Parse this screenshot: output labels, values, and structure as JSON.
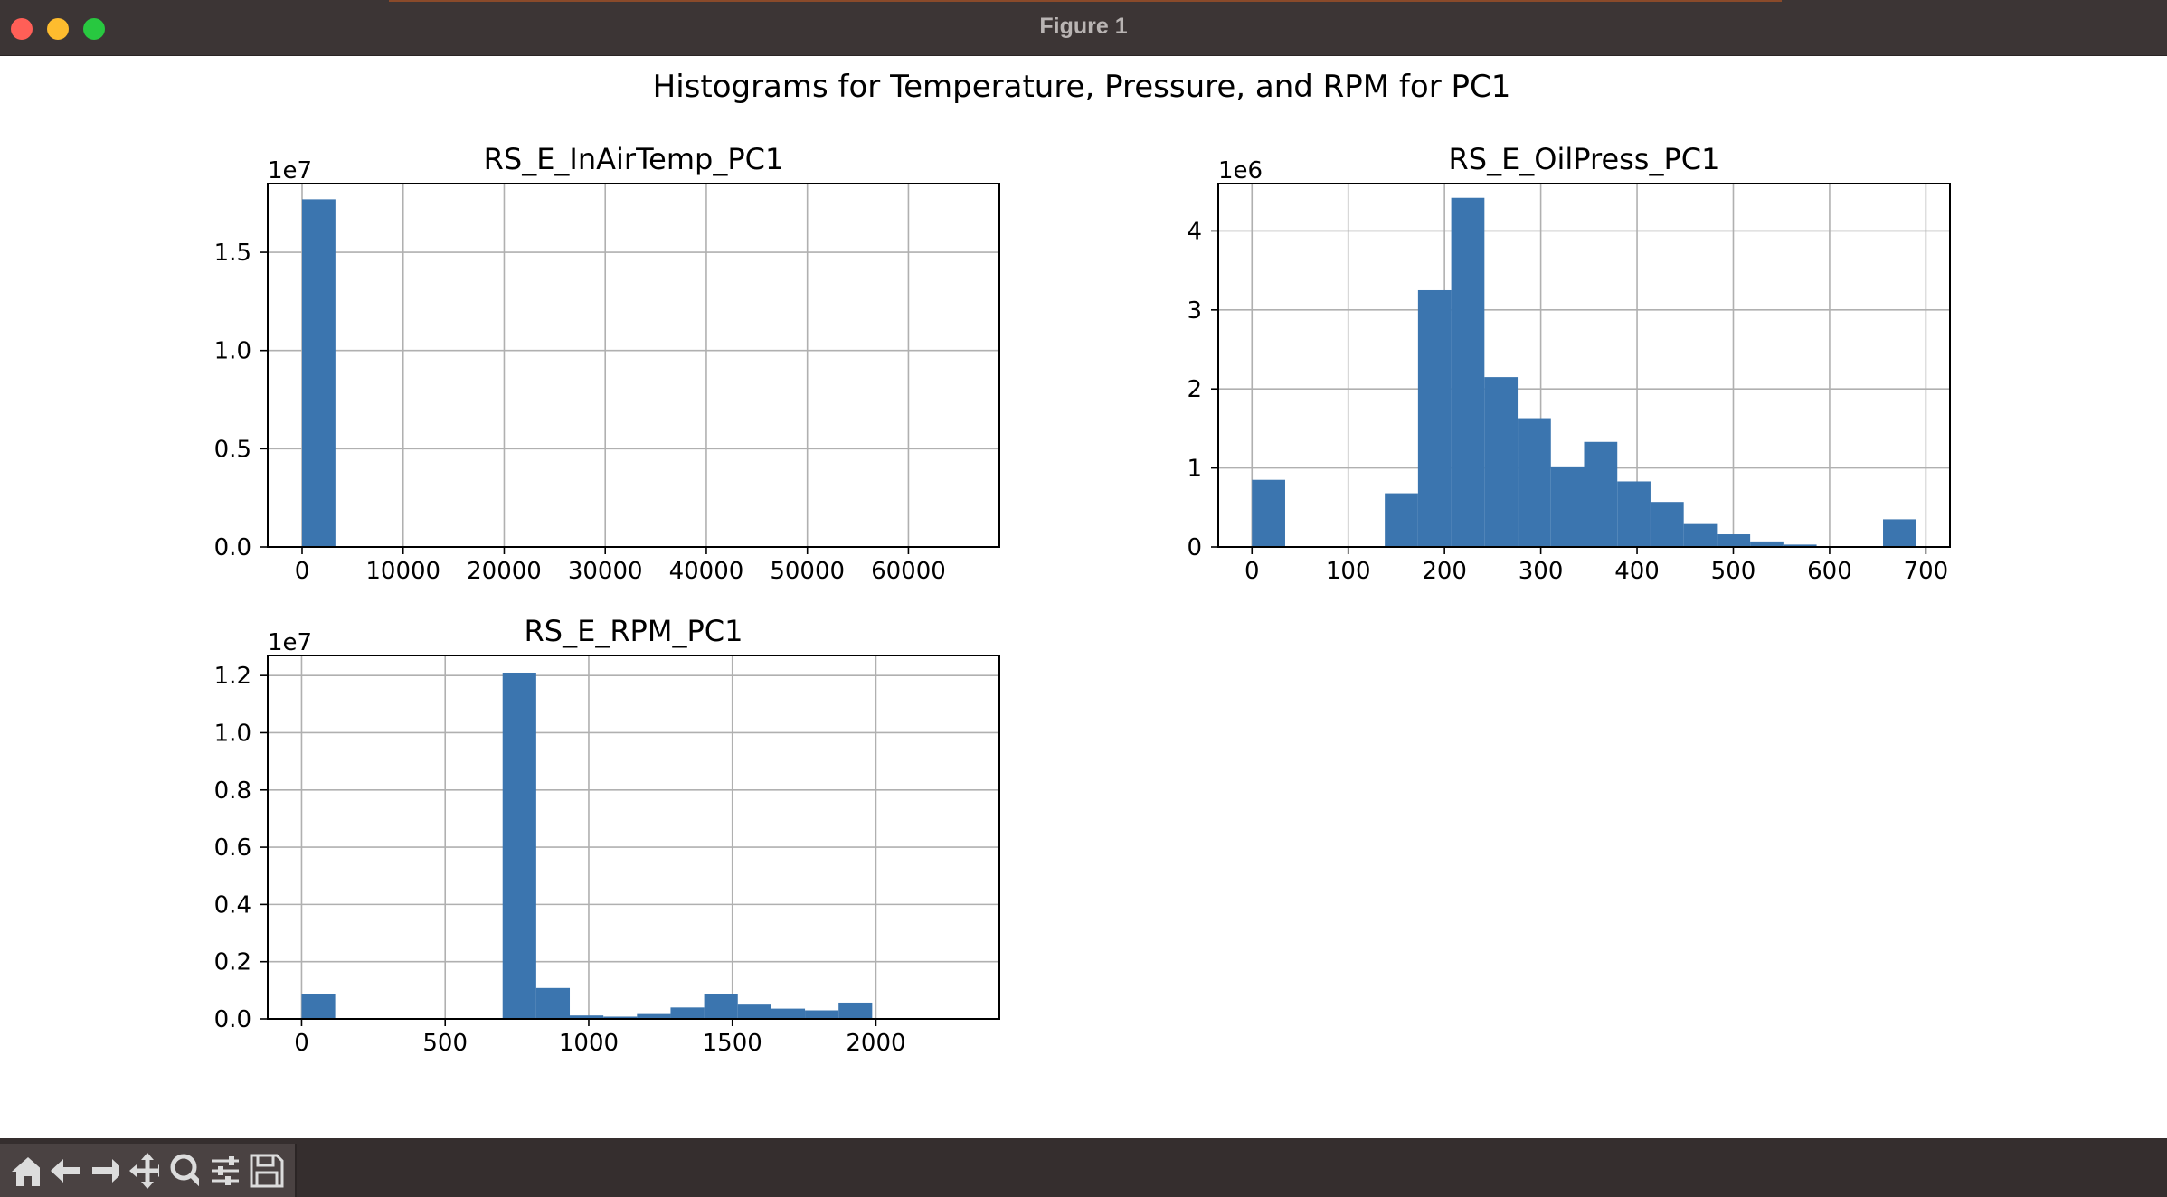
{
  "window": {
    "title": "Figure 1",
    "traffic_lights": [
      {
        "name": "close",
        "color": "#ff5f57"
      },
      {
        "name": "minimize",
        "color": "#febc2e"
      },
      {
        "name": "zoom",
        "color": "#28c840"
      }
    ]
  },
  "figure": {
    "suptitle": "Histograms for Temperature, Pressure, and RPM for PC1",
    "bar_color": "#3b75af",
    "grid": true
  },
  "chart_data": [
    {
      "type": "bar",
      "title": "RS_E_InAirTemp_PC1",
      "offset_text": "1e7",
      "xlim": [
        -3400,
        69000
      ],
      "ylim": [
        0,
        1.85
      ],
      "xticks": [
        0,
        10000,
        20000,
        30000,
        40000,
        50000,
        60000
      ],
      "xtick_labels": [
        "0",
        "10000",
        "20000",
        "30000",
        "40000",
        "50000",
        "60000"
      ],
      "yticks": [
        0,
        0.5,
        1.0,
        1.5
      ],
      "ytick_labels": [
        "0.0",
        "0.5",
        "1.0",
        "1.5"
      ],
      "bins": [
        [
          0,
          3300,
          1.77
        ]
      ]
    },
    {
      "type": "bar",
      "title": "RS_E_OilPress_PC1",
      "offset_text": "1e6",
      "xlim": [
        -35,
        725
      ],
      "ylim": [
        0,
        4.6
      ],
      "xticks": [
        0,
        100,
        200,
        300,
        400,
        500,
        600,
        700
      ],
      "xtick_labels": [
        "0",
        "100",
        "200",
        "300",
        "400",
        "500",
        "600",
        "700"
      ],
      "yticks": [
        0,
        1,
        2,
        3,
        4
      ],
      "ytick_labels": [
        "0",
        "1",
        "2",
        "3",
        "4"
      ],
      "bins": [
        [
          0,
          34.5,
          0.85
        ],
        [
          138,
          172.5,
          0.68
        ],
        [
          172.5,
          207,
          3.25
        ],
        [
          207,
          241.5,
          4.42
        ],
        [
          241.5,
          276,
          2.15
        ],
        [
          276,
          310.5,
          1.63
        ],
        [
          310.5,
          345,
          1.02
        ],
        [
          345,
          379.5,
          1.33
        ],
        [
          379.5,
          414,
          0.83
        ],
        [
          414,
          448.5,
          0.57
        ],
        [
          448.5,
          483,
          0.29
        ],
        [
          483,
          517.5,
          0.16
        ],
        [
          517.5,
          552,
          0.07
        ],
        [
          552,
          586.5,
          0.03
        ],
        [
          655.5,
          690,
          0.35
        ]
      ]
    },
    {
      "type": "bar",
      "title": "RS_E_RPM_PC1",
      "offset_text": "1e7",
      "xlim": [
        -118,
        2430
      ],
      "ylim": [
        0,
        1.27
      ],
      "xticks": [
        0,
        500,
        1000,
        1500,
        2000
      ],
      "xtick_labels": [
        "0",
        "500",
        "1000",
        "1500",
        "2000"
      ],
      "yticks": [
        0,
        0.2,
        0.4,
        0.6,
        0.8,
        1.0,
        1.2
      ],
      "ytick_labels": [
        "0.0",
        "0.2",
        "0.4",
        "0.6",
        "0.8",
        "1.0",
        "1.2"
      ],
      "bins": [
        [
          0,
          117,
          0.088
        ],
        [
          700,
          817,
          1.21
        ],
        [
          817,
          934,
          0.108
        ],
        [
          934,
          1051,
          0.012
        ],
        [
          1051,
          1168,
          0.008
        ],
        [
          1168,
          1285,
          0.017
        ],
        [
          1285,
          1402,
          0.04
        ],
        [
          1402,
          1519,
          0.088
        ],
        [
          1519,
          1636,
          0.05
        ],
        [
          1636,
          1753,
          0.036
        ],
        [
          1753,
          1870,
          0.03
        ],
        [
          1870,
          1987,
          0.057
        ]
      ]
    }
  ],
  "toolbar": {
    "buttons": [
      {
        "icon": "home-icon"
      },
      {
        "icon": "back-arrow-icon"
      },
      {
        "icon": "forward-arrow-icon"
      },
      {
        "icon": "pan-move-icon"
      },
      {
        "icon": "zoom-magnifier-icon"
      },
      {
        "icon": "configure-subplots-icon"
      },
      {
        "icon": "save-disk-icon"
      }
    ]
  }
}
